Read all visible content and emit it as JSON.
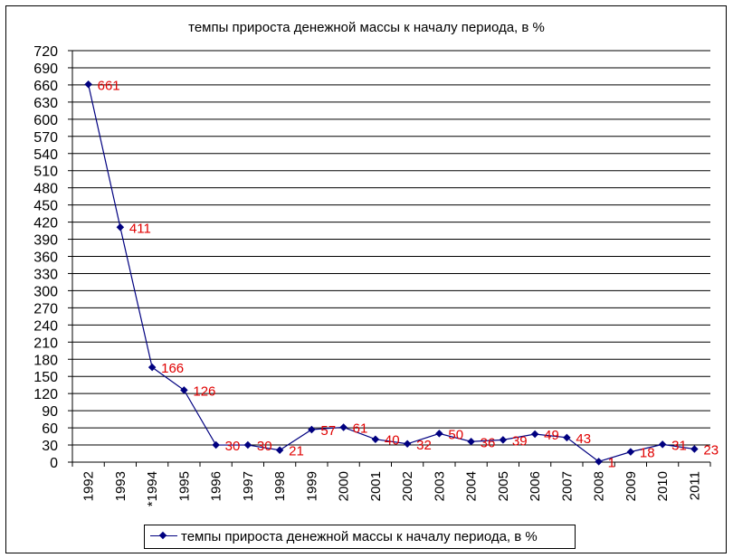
{
  "chart_data": {
    "type": "line",
    "title": "темпы прироста денежной массы к началу периода, в %",
    "categories": [
      "1992",
      "1993",
      "*1994",
      "1995",
      "1996",
      "1997",
      "1998",
      "1999",
      "2000",
      "2001",
      "2002",
      "2003",
      "2004",
      "2005",
      "2006",
      "2007",
      "2008",
      "2009",
      "2010",
      "2011"
    ],
    "series": [
      {
        "name": "темпы прироста денежной массы к началу периода, в %",
        "values": [
          661,
          411,
          166,
          126,
          30,
          30,
          21,
          57,
          61,
          40,
          32,
          50,
          36,
          39,
          49,
          43,
          1,
          18,
          31,
          23
        ]
      }
    ],
    "data_labels": [
      "661",
      "411",
      "166",
      "126",
      "30",
      "30",
      "21",
      "57",
      "61",
      "40",
      "32",
      "50",
      "36",
      "39",
      "49",
      "43",
      "1",
      "18",
      "31",
      "23"
    ],
    "ylim": [
      0,
      720
    ],
    "yticks": [
      "0",
      "30",
      "60",
      "90",
      "120",
      "150",
      "180",
      "210",
      "240",
      "270",
      "300",
      "330",
      "360",
      "390",
      "420",
      "450",
      "480",
      "510",
      "540",
      "570",
      "600",
      "630",
      "660",
      "690",
      "720"
    ],
    "grid": true,
    "legend_position": "bottom",
    "colors": {
      "line": "#000080",
      "marker": "#000080",
      "label": "#e00000",
      "grid": "#000000"
    }
  }
}
